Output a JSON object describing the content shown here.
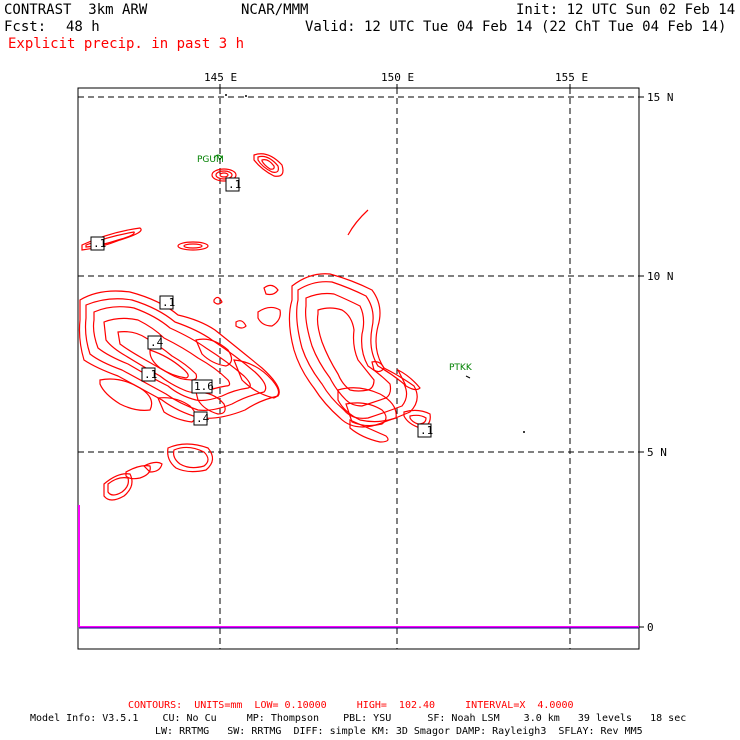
{
  "header": {
    "title_left": "CONTRAST  3km ARW",
    "title_center": "NCAR/MMM",
    "init": "Init: 12 UTC Sun 02 Feb 14",
    "fcst_label": "Fcst:",
    "fcst_value": "48 h",
    "valid": "Valid: 12 UTC Tue 04 Feb 14 (22 ChT Tue 04 Feb 14)",
    "field": "Explicit precip. in past 3 h"
  },
  "map": {
    "lon_labels": [
      "145 E",
      "150 E",
      "155 E"
    ],
    "lat_labels": [
      "15 N",
      "10 N",
      "5 N",
      "0"
    ],
    "stations": [
      "PGUM",
      "PTKK"
    ],
    "contour_labels": [
      ".1",
      ".1",
      ".1",
      ".4",
      ".1",
      "1.6",
      ".4",
      ".1"
    ],
    "colors": {
      "contour": "#ff0000",
      "grid": "#000000",
      "station": "#008000",
      "accent": "#ff00ff"
    }
  },
  "footer": {
    "contours": "CONTOURS:  UNITS=mm  LOW= 0.10000     HIGH=  102.40     INTERVAL=X  4.0000",
    "model_info_1": "Model Info: V3.5.1    CU: No Cu     MP: Thompson    PBL: YSU      SF: Noah LSM    3.0 km   39 levels   18 sec",
    "model_info_2": "LW: RRTMG   SW: RRTMG  DIFF: simple KM: 3D Smagor DAMP: Rayleigh3  SFLAY: Rev MM5"
  }
}
